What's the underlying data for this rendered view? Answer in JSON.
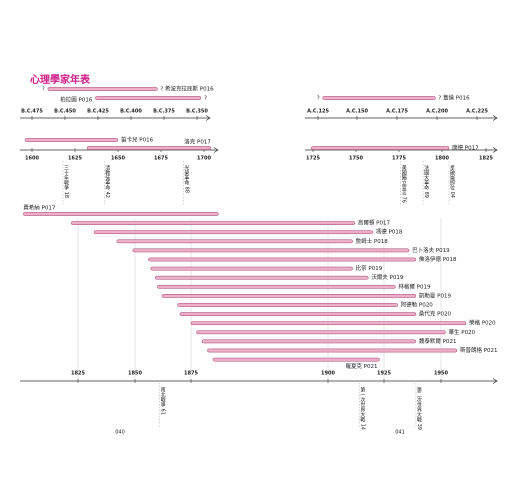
{
  "title": "心理學家年表",
  "segments": [
    {
      "ticks": [
        {
          "value": -475,
          "label": "B.C.475"
        },
        {
          "value": -450,
          "label": "B.C.450"
        },
        {
          "value": -425,
          "label": "B.C.425"
        },
        {
          "value": -400,
          "label": "B.C.400"
        },
        {
          "value": -375,
          "label": "B.C.375"
        },
        {
          "value": -350,
          "label": "B.C.350"
        }
      ],
      "bars": [
        {
          "label": "? 希波克拉底斯 P016",
          "label_side": "right",
          "mark": "?",
          "start": -463,
          "end": -380
        },
        {
          "label": "柏拉圖 P016",
          "label_side": "left",
          "mark": "?",
          "start": -427,
          "end": -347
        }
      ]
    },
    {
      "ticks": [
        {
          "value": 125,
          "label": "A.C.125"
        },
        {
          "value": 150,
          "label": "A.C.150"
        },
        {
          "value": 175,
          "label": "A.C.175"
        },
        {
          "value": 200,
          "label": "A.C.200"
        },
        {
          "value": 225,
          "label": "A.C.225"
        }
      ],
      "bars": [
        {
          "label": "? 蓋倫 P016",
          "label_side": "right",
          "mark": "?",
          "start": 128,
          "end": 199
        }
      ]
    },
    {
      "ticks": [
        1600,
        1625,
        1650,
        1675,
        1700
      ],
      "bars": [
        {
          "label": "笛卡兒 P016",
          "label_side": "right",
          "start": 1596,
          "end": 1650
        },
        {
          "label": "洛克 P017",
          "label_side": "above",
          "start": 1632,
          "end": 1704
        }
      ],
      "events": [
        {
          "label": "三十年戰爭 18",
          "year": 1618
        },
        {
          "label": "清教徒革命 42",
          "year": 1642
        },
        {
          "label": "光榮革命 88",
          "year": 1688
        }
      ]
    },
    {
      "ticks": [
        1725,
        1750,
        1775,
        1800,
        1825
      ],
      "bars": [
        {
          "label": "康德 P017",
          "label_side": "right",
          "start": 1724,
          "end": 1804
        }
      ],
      "events": [
        {
          "label": "美國獨立宣言 76",
          "year": 1776
        },
        {
          "label": "法國大革命 89",
          "year": 1789
        },
        {
          "label": "拿破崙即位 04",
          "year": 1804
        }
      ]
    },
    {
      "ticks": [
        1825,
        1850,
        1875,
        1900,
        1925,
        1950
      ],
      "bars": [
        {
          "label": "費希納 P017",
          "label_side": "above-start",
          "start": 1801,
          "end": 1880
        },
        {
          "label": "高爾頓 P017",
          "label_side": "right",
          "start": 1822,
          "end": 1912
        },
        {
          "label": "馮德 P018",
          "label_side": "right",
          "start": 1832,
          "end": 1920
        },
        {
          "label": "詹姆士 P018",
          "label_side": "right",
          "start": 1842,
          "end": 1911
        },
        {
          "label": "巴卜洛夫 P019",
          "label_side": "right",
          "start": 1849,
          "end": 1936
        },
        {
          "label": "佛洛伊德 P018",
          "label_side": "right",
          "start": 1856,
          "end": 1939
        },
        {
          "label": "比奈 P019",
          "label_side": "right",
          "start": 1857,
          "end": 1911
        },
        {
          "label": "沃爾夫 P019",
          "label_side": "right",
          "start": 1859,
          "end": 1918
        },
        {
          "label": "林格爾 P019",
          "label_side": "right",
          "start": 1860,
          "end": 1930
        },
        {
          "label": "凱勒曼 P019",
          "label_side": "right",
          "start": 1862,
          "end": 1939
        },
        {
          "label": "阿德勒 P020",
          "label_side": "right",
          "start": 1869,
          "end": 1931
        },
        {
          "label": "桑代克 P020",
          "label_side": "right",
          "start": 1870,
          "end": 1939
        },
        {
          "label": "榮格 P020",
          "label_side": "right",
          "start": 1875,
          "end": 1961
        },
        {
          "label": "華生 P020",
          "label_side": "right",
          "start": 1876,
          "end": 1952
        },
        {
          "label": "魏泰默爾 P021",
          "label_side": "right",
          "start": 1877,
          "end": 1939
        },
        {
          "label": "斯普朗格 P021",
          "label_side": "right",
          "start": 1878,
          "end": 1957
        },
        {
          "label": "羅夏克 P021",
          "label_side": "below",
          "start": 1879,
          "end": 1923
        }
      ],
      "events": [
        {
          "label": "南北戰爭 61",
          "year": 1861
        },
        {
          "label": "第一次世界大戰 14",
          "year": 1914
        },
        {
          "label": "第二次世界大戰 39",
          "year": 1939
        }
      ]
    }
  ],
  "page_numbers": [
    "040",
    "041"
  ]
}
